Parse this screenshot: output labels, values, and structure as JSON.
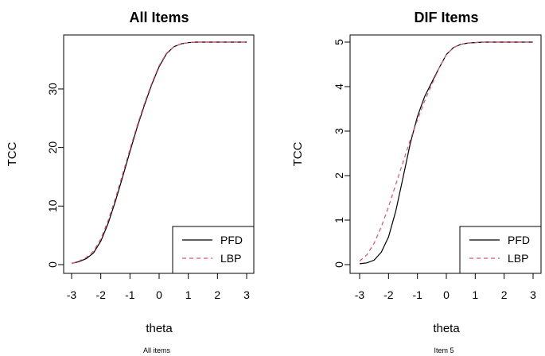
{
  "chart_data": [
    {
      "type": "line",
      "title": "All Items",
      "xlabel": "theta",
      "ylabel": "TCC",
      "caption": "All items",
      "xlim": [
        -3,
        3
      ],
      "ylim": [
        0,
        38
      ],
      "xticks": [
        "-3",
        "-2",
        "-1",
        "0",
        "1",
        "2",
        "3"
      ],
      "yticks": [
        "0",
        "10",
        "20",
        "30"
      ],
      "grid": false,
      "legend_position": "bottom-right",
      "series": [
        {
          "name": "PFD",
          "color": "#000000",
          "dash": "solid",
          "x": [
            -3,
            -2.75,
            -2.5,
            -2.25,
            -2,
            -1.75,
            -1.5,
            -1.25,
            -1,
            -0.75,
            -0.5,
            -0.25,
            0,
            0.25,
            0.5,
            0.75,
            1,
            1.25,
            1.5,
            2,
            2.5,
            3
          ],
          "y": [
            0.2,
            0.5,
            1.0,
            2.0,
            4.0,
            7.0,
            10.8,
            15.0,
            19.3,
            23.5,
            27.3,
            30.8,
            33.8,
            36.0,
            37.2,
            37.7,
            37.9,
            38.0,
            38.0,
            38.0,
            38.0,
            38.0
          ]
        },
        {
          "name": "LBP",
          "color": "#df536b",
          "dash": "dashed",
          "x": [
            -3,
            -2.75,
            -2.5,
            -2.25,
            -2,
            -1.75,
            -1.5,
            -1.25,
            -1,
            -0.75,
            -0.5,
            -0.25,
            0,
            0.25,
            0.5,
            0.75,
            1,
            1.25,
            1.5,
            2,
            2.5,
            3
          ],
          "y": [
            0.2,
            0.6,
            1.2,
            2.3,
            4.4,
            7.5,
            11.3,
            15.5,
            19.7,
            23.8,
            27.6,
            31.0,
            34.0,
            36.1,
            37.2,
            37.7,
            37.9,
            38.0,
            38.0,
            38.0,
            38.0,
            38.0
          ]
        }
      ]
    },
    {
      "type": "line",
      "title": "DIF Items",
      "xlabel": "theta",
      "ylabel": "TCC",
      "caption": "Item 5",
      "xlim": [
        -3,
        3
      ],
      "ylim": [
        0,
        5
      ],
      "xticks": [
        "-3",
        "-2",
        "-1",
        "0",
        "1",
        "2",
        "3"
      ],
      "yticks": [
        "0",
        "1",
        "2",
        "3",
        "4",
        "5"
      ],
      "grid": false,
      "legend_position": "bottom-right",
      "series": [
        {
          "name": "PFD",
          "color": "#000000",
          "dash": "solid",
          "x": [
            -3,
            -2.75,
            -2.5,
            -2.25,
            -2,
            -1.75,
            -1.5,
            -1.25,
            -1,
            -0.75,
            -0.5,
            -0.25,
            0,
            0.25,
            0.5,
            0.75,
            1,
            1.25,
            1.5,
            2,
            2.5,
            3
          ],
          "y": [
            0.02,
            0.04,
            0.1,
            0.28,
            0.62,
            1.2,
            1.95,
            2.72,
            3.33,
            3.78,
            4.1,
            4.42,
            4.72,
            4.88,
            4.95,
            4.98,
            4.99,
            5.0,
            5.0,
            5.0,
            5.0,
            5.0
          ]
        },
        {
          "name": "LBP",
          "color": "#df536b",
          "dash": "dashed",
          "x": [
            -3,
            -2.75,
            -2.5,
            -2.25,
            -2,
            -1.75,
            -1.5,
            -1.25,
            -1,
            -0.75,
            -0.5,
            -0.25,
            0,
            0.25,
            0.5,
            0.75,
            1,
            1.25,
            1.5,
            2,
            2.5,
            3
          ],
          "y": [
            0.08,
            0.22,
            0.48,
            0.85,
            1.3,
            1.8,
            2.3,
            2.8,
            3.25,
            3.68,
            4.05,
            4.42,
            4.72,
            4.88,
            4.95,
            4.98,
            4.99,
            5.0,
            5.0,
            5.0,
            5.0,
            5.0
          ]
        }
      ]
    }
  ]
}
